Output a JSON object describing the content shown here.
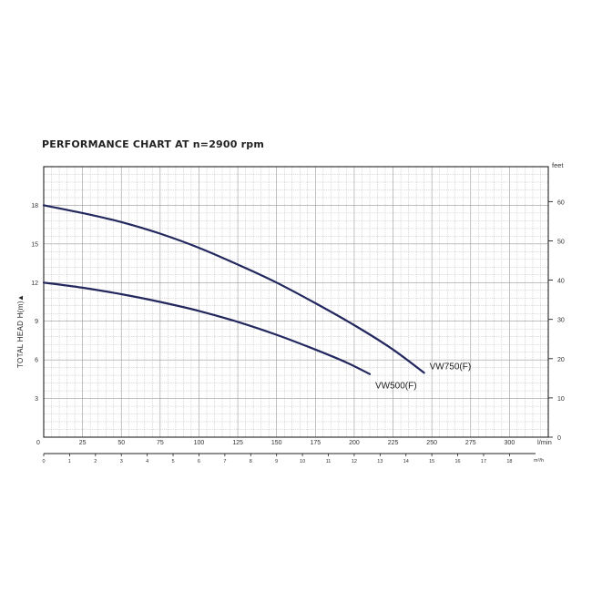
{
  "chart_data": {
    "type": "line",
    "title": "PERFORMANCE CHART AT  n=2900 rpm",
    "ylabel": "TOTAL HEAD H(m)",
    "ylabel_arrow": "▲",
    "y2label": "feet",
    "xlabel_primary_unit": "l/min",
    "xlabel_secondary_unit": "m³/h",
    "xlim": [
      0,
      325
    ],
    "ylim": [
      0,
      21
    ],
    "grid": true,
    "x_ticks": [
      0,
      25,
      50,
      75,
      100,
      125,
      150,
      175,
      200,
      225,
      250,
      275,
      300
    ],
    "x_tick_labels": [
      "0",
      "25",
      "50",
      "75",
      "100",
      "125",
      "150",
      "175",
      "200",
      "225",
      "250",
      "275",
      "300"
    ],
    "y_ticks": [
      3,
      6,
      9,
      12,
      15,
      18
    ],
    "y_tick_labels": [
      "3",
      "6",
      "9",
      "12",
      "15",
      "18"
    ],
    "y2_ticks_feet": [
      0,
      10,
      20,
      30,
      40,
      50,
      60
    ],
    "y2_tick_labels": [
      "0",
      "10",
      "20",
      "30",
      "40",
      "50",
      "60"
    ],
    "x2_ticks_m3h": [
      0,
      1,
      2,
      3,
      4,
      5,
      6,
      7,
      8,
      9,
      10,
      11,
      12,
      13,
      14,
      15,
      16,
      17,
      18
    ],
    "x2_tick_labels": [
      "0",
      "1",
      "2",
      "3",
      "4",
      "5",
      "6",
      "7",
      "8",
      "9",
      "10",
      "11",
      "12",
      "13",
      "14",
      "15",
      "16",
      "17",
      "18"
    ],
    "series": [
      {
        "name": "VW750(F)",
        "color": "#22285e",
        "x": [
          0,
          25,
          50,
          75,
          100,
          125,
          150,
          175,
          200,
          225,
          245
        ],
        "y": [
          18.0,
          17.4,
          16.7,
          15.8,
          14.7,
          13.4,
          12.0,
          10.4,
          8.7,
          6.8,
          5.0
        ]
      },
      {
        "name": "VW500(F)",
        "color": "#22285e",
        "x": [
          0,
          25,
          50,
          75,
          100,
          125,
          150,
          175,
          195,
          210
        ],
        "y": [
          12.0,
          11.6,
          11.1,
          10.5,
          9.8,
          8.95,
          7.95,
          6.8,
          5.8,
          4.9
        ]
      }
    ]
  }
}
